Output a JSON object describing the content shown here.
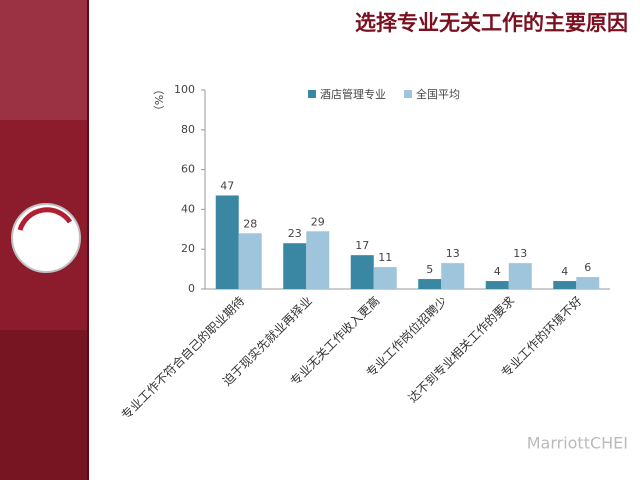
{
  "chart_data": {
    "type": "bar",
    "title": "选择专业无关工作的主要原因",
    "y_label": "（%）",
    "categories": [
      "专业工作不符合自己的职业期待",
      "迫于现实先就业再择业",
      "专业无关工作收入更高",
      "专业工作岗位招聘少",
      "达不到专业相关工作的要求",
      "专业工作的环境不好"
    ],
    "series": [
      {
        "name": "酒店管理专业",
        "color": "#3a87a3",
        "values": [
          47,
          23,
          17,
          5,
          4,
          4
        ]
      },
      {
        "name": "全国平均",
        "color": "#9ec5dc",
        "values": [
          28,
          29,
          11,
          13,
          13,
          6
        ]
      }
    ],
    "ylim": [
      0,
      100
    ],
    "yticks": [
      0,
      20,
      40,
      60,
      80,
      100
    ],
    "grid": false,
    "legend": "top"
  },
  "watermark": "MarriottCHEI"
}
